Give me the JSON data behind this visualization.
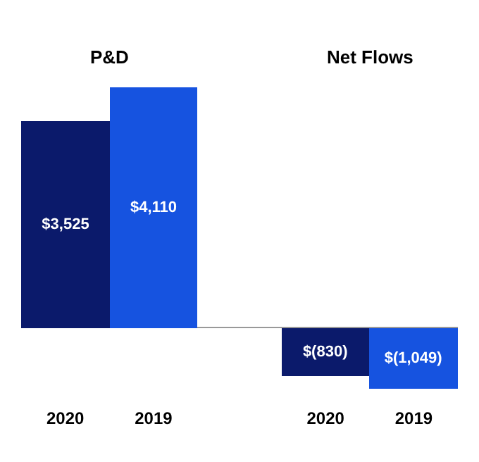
{
  "chart_data": {
    "type": "bar",
    "categories": [
      "2020",
      "2019",
      "2020",
      "2019"
    ],
    "values": [
      3525,
      4110,
      -830,
      -1049
    ],
    "colors": [
      "#0b1a6b",
      "#1653e0",
      "#0b1a6b",
      "#1653e0"
    ],
    "value_labels": [
      "$3,525",
      "$4,110",
      "$(830)",
      "$(1,049)"
    ],
    "annotations": [
      "P&D",
      "Net Flows"
    ],
    "relative": false
  }
}
